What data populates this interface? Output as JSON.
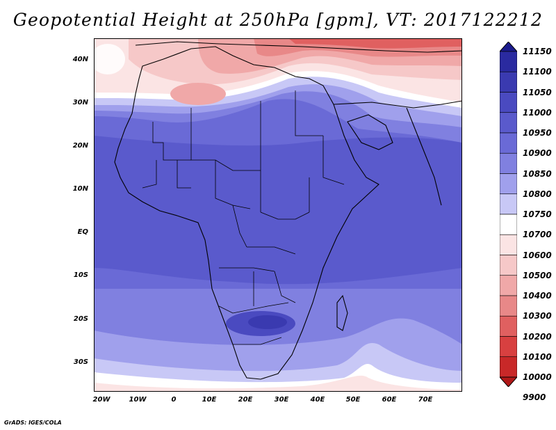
{
  "title": "Geopotential Height at 250hPa [gpm], VT: 2017122212",
  "credit": "GrADS: IGES/COLA",
  "y_ticks": [
    "40N",
    "30N",
    "20N",
    "10N",
    "EQ",
    "10S",
    "20S",
    "30S"
  ],
  "x_ticks": [
    "20W",
    "10W",
    "0",
    "10E",
    "20E",
    "30E",
    "40E",
    "50E",
    "60E",
    "70E"
  ],
  "colorbar": {
    "levels": [
      "11150",
      "11100",
      "11050",
      "11000",
      "10950",
      "10900",
      "10850",
      "10800",
      "10750",
      "10700",
      "10600",
      "10500",
      "10400",
      "10300",
      "10200",
      "10100",
      "10000",
      "9900"
    ],
    "colors": [
      "#1a1a8c",
      "#2a2aa0",
      "#3a3ab0",
      "#4a4ac0",
      "#5a5acc",
      "#6a6ad6",
      "#8080e0",
      "#a0a0ec",
      "#c8c8f6",
      "#ffffff",
      "#fbe4e4",
      "#f6c8c8",
      "#f0a8a8",
      "#e88888",
      "#e06060",
      "#d84040",
      "#c82828",
      "#b01818"
    ]
  },
  "map": {
    "region": "Africa",
    "lon_range": [
      -22,
      80
    ],
    "lat_range": [
      -37,
      45
    ]
  }
}
